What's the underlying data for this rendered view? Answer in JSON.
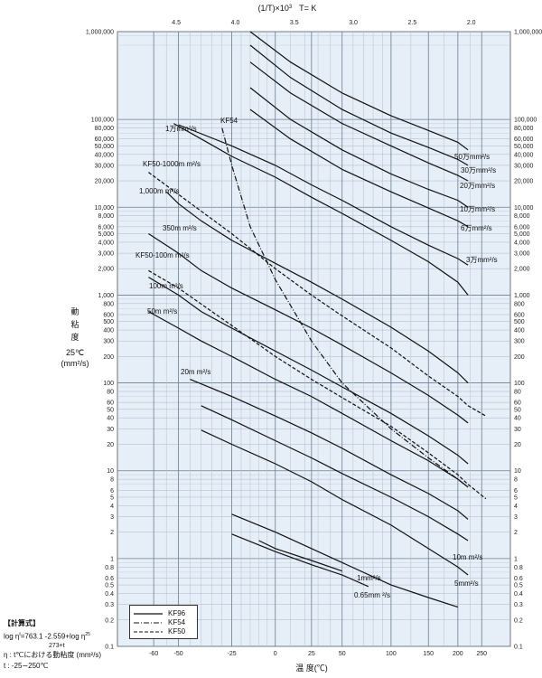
{
  "chart_data": {
    "type": "line",
    "top_axis_label": "(1/T)×10",
    "top_axis_sup": "3",
    "top_axis_unit": "T= K",
    "top_ticks": [
      "4.5",
      "4.0",
      "3.5",
      "3.0",
      "2.5",
      "2.0"
    ],
    "x_ticks": [
      "-60",
      "-50",
      "-25",
      "0",
      "25",
      "50",
      "100",
      "150",
      "200",
      "250"
    ],
    "xlabel": "温 度(℃)",
    "y_ticks": [
      {
        "v": 1000000,
        "t": "1,000,000"
      },
      {
        "v": 100000,
        "t": "100,000"
      },
      {
        "v": 80000,
        "t": "80,000"
      },
      {
        "v": 60000,
        "t": "60,000"
      },
      {
        "v": 50000,
        "t": "50,000"
      },
      {
        "v": 40000,
        "t": "40,000"
      },
      {
        "v": 30000,
        "t": "30,000"
      },
      {
        "v": 20000,
        "t": "20,000"
      },
      {
        "v": 10000,
        "t": "10,000"
      },
      {
        "v": 8000,
        "t": "8,000"
      },
      {
        "v": 6000,
        "t": "6,000"
      },
      {
        "v": 5000,
        "t": "5,000"
      },
      {
        "v": 4000,
        "t": "4,000"
      },
      {
        "v": 3000,
        "t": "3,000"
      },
      {
        "v": 2000,
        "t": "2,000"
      },
      {
        "v": 1000,
        "t": "1,000"
      },
      {
        "v": 800,
        "t": "800"
      },
      {
        "v": 600,
        "t": "600"
      },
      {
        "v": 500,
        "t": "500"
      },
      {
        "v": 400,
        "t": "400"
      },
      {
        "v": 300,
        "t": "300"
      },
      {
        "v": 200,
        "t": "200"
      },
      {
        "v": 100,
        "t": "100"
      },
      {
        "v": 80,
        "t": "80"
      },
      {
        "v": 60,
        "t": "60"
      },
      {
        "v": 50,
        "t": "50"
      },
      {
        "v": 40,
        "t": "40"
      },
      {
        "v": 30,
        "t": "30"
      },
      {
        "v": 20,
        "t": "20"
      },
      {
        "v": 10,
        "t": "10"
      },
      {
        "v": 8,
        "t": "8"
      },
      {
        "v": 6,
        "t": "6"
      },
      {
        "v": 5,
        "t": "5"
      },
      {
        "v": 4,
        "t": "4"
      },
      {
        "v": 3,
        "t": "3"
      },
      {
        "v": 2,
        "t": "2"
      },
      {
        "v": 1,
        "t": "1"
      },
      {
        "v": 0.8,
        "t": "0.8"
      },
      {
        "v": 0.6,
        "t": "0.6"
      },
      {
        "v": 0.5,
        "t": "0.5"
      },
      {
        "v": 0.4,
        "t": "0.4"
      },
      {
        "v": 0.3,
        "t": "0.3"
      },
      {
        "v": 0.2,
        "t": "0.2"
      },
      {
        "v": 0.1,
        "t": "0.1"
      }
    ],
    "ylabel_lines": [
      "動",
      "粘",
      "度",
      "25℃",
      "(mm²/s)"
    ],
    "ylim": [
      0.1,
      1000000
    ],
    "xlim": [
      -70,
      265
    ],
    "series": [
      {
        "name": "50万mm²/s",
        "style": "solid",
        "points": [
          [
            -15,
            1000000
          ],
          [
            10,
            450000
          ],
          [
            50,
            200000
          ],
          [
            100,
            110000
          ],
          [
            150,
            75000
          ],
          [
            200,
            55000
          ],
          [
            220,
            45000
          ]
        ]
      },
      {
        "name": "30万mm²/s",
        "style": "solid",
        "points": [
          [
            -15,
            700000
          ],
          [
            10,
            300000
          ],
          [
            50,
            130000
          ],
          [
            100,
            70000
          ],
          [
            150,
            48000
          ],
          [
            200,
            35000
          ],
          [
            220,
            30000
          ]
        ]
      },
      {
        "name": "20万mm²/s",
        "style": "solid",
        "points": [
          [
            -15,
            450000
          ],
          [
            10,
            200000
          ],
          [
            50,
            90000
          ],
          [
            100,
            50000
          ],
          [
            150,
            32000
          ],
          [
            200,
            23000
          ],
          [
            220,
            20000
          ]
        ]
      },
      {
        "name": "10万mm²/s",
        "style": "solid",
        "points": [
          [
            -15,
            230000
          ],
          [
            10,
            100000
          ],
          [
            50,
            45000
          ],
          [
            100,
            24000
          ],
          [
            150,
            16000
          ],
          [
            200,
            12000
          ],
          [
            220,
            10000
          ]
        ]
      },
      {
        "name": "6万mm²/s",
        "style": "solid",
        "points": [
          [
            -15,
            130000
          ],
          [
            10,
            60000
          ],
          [
            50,
            27000
          ],
          [
            100,
            15000
          ],
          [
            150,
            9800
          ],
          [
            200,
            7000
          ],
          [
            220,
            6000
          ]
        ]
      },
      {
        "name": "3万mm²/s",
        "style": "solid",
        "points": [
          [
            -50,
            87000
          ],
          [
            -25,
            50000
          ],
          [
            0,
            30000
          ],
          [
            25,
            18000
          ],
          [
            50,
            12000
          ],
          [
            100,
            6000
          ],
          [
            150,
            3700
          ],
          [
            200,
            2600
          ],
          [
            220,
            2200
          ]
        ]
      },
      {
        "name": "1万mm²/s",
        "style": "solid",
        "points": [
          [
            -52,
            90000
          ],
          [
            -40,
            60000
          ],
          [
            -25,
            38000
          ],
          [
            0,
            22000
          ],
          [
            25,
            13000
          ],
          [
            50,
            8500
          ],
          [
            100,
            4200
          ],
          [
            150,
            2400
          ],
          [
            200,
            1400
          ],
          [
            220,
            1000
          ]
        ]
      },
      {
        "name": "1,000mm²/s",
        "style": "solid",
        "points": [
          [
            -55,
            15000
          ],
          [
            -50,
            11000
          ],
          [
            -40,
            7000
          ],
          [
            -25,
            4200
          ],
          [
            0,
            2300
          ],
          [
            25,
            1400
          ],
          [
            50,
            900
          ],
          [
            100,
            430
          ],
          [
            150,
            230
          ],
          [
            200,
            130
          ],
          [
            220,
            100
          ]
        ]
      },
      {
        "name": "350mm²/s",
        "style": "solid",
        "points": [
          [
            -62,
            5000
          ],
          [
            -50,
            3000
          ],
          [
            -40,
            1900
          ],
          [
            -25,
            1200
          ],
          [
            0,
            680
          ],
          [
            25,
            420
          ],
          [
            50,
            270
          ],
          [
            100,
            130
          ],
          [
            150,
            72
          ],
          [
            200,
            43
          ],
          [
            220,
            35
          ]
        ]
      },
      {
        "name": "100mm²/s",
        "style": "solid",
        "points": [
          [
            -62,
            1600
          ],
          [
            -50,
            1000
          ],
          [
            -40,
            650
          ],
          [
            -25,
            420
          ],
          [
            0,
            230
          ],
          [
            25,
            140
          ],
          [
            50,
            90
          ],
          [
            100,
            45
          ],
          [
            150,
            25
          ],
          [
            200,
            15
          ],
          [
            220,
            12
          ]
        ]
      },
      {
        "name": "50mm²/s",
        "style": "solid",
        "points": [
          [
            -62,
            650
          ],
          [
            -50,
            420
          ],
          [
            -40,
            300
          ],
          [
            -25,
            200
          ],
          [
            0,
            110
          ],
          [
            25,
            70
          ],
          [
            50,
            45
          ],
          [
            100,
            22
          ],
          [
            150,
            13
          ],
          [
            200,
            8
          ],
          [
            220,
            6.5
          ]
        ]
      },
      {
        "name": "20m m²/s",
        "style": "solid",
        "points": [
          [
            -45,
            110
          ],
          [
            -25,
            70
          ],
          [
            0,
            42
          ],
          [
            25,
            27
          ],
          [
            50,
            18
          ],
          [
            100,
            9
          ],
          [
            150,
            5.5
          ],
          [
            200,
            3.5
          ],
          [
            220,
            2.8
          ]
        ]
      },
      {
        "name": "",
        "style": "solid",
        "points": [
          [
            -40,
            55
          ],
          [
            -25,
            38
          ],
          [
            0,
            22
          ],
          [
            25,
            14
          ],
          [
            50,
            9.3
          ],
          [
            100,
            5
          ],
          [
            150,
            3
          ],
          [
            200,
            1.9
          ],
          [
            220,
            1.6
          ]
        ]
      },
      {
        "name": "10mm²/s",
        "style": "solid",
        "points": [
          [
            -40,
            29
          ],
          [
            -25,
            20
          ],
          [
            0,
            12
          ],
          [
            25,
            7.5
          ],
          [
            50,
            4.7
          ],
          [
            100,
            2.4
          ],
          [
            150,
            1.3
          ],
          [
            200,
            0.8
          ],
          [
            220,
            0.65
          ]
        ]
      },
      {
        "name": "5mm²/s",
        "style": "solid",
        "points": [
          [
            -25,
            3.2
          ],
          [
            0,
            2
          ],
          [
            25,
            1.3
          ],
          [
            50,
            0.9
          ],
          [
            100,
            0.5
          ],
          [
            150,
            0.36
          ],
          [
            200,
            0.28
          ]
        ]
      },
      {
        "name": "1mm²/s",
        "style": "solid",
        "points": [
          [
            -25,
            1.9
          ],
          [
            0,
            1.2
          ],
          [
            25,
            0.85
          ],
          [
            50,
            0.65
          ],
          [
            75,
            0.48
          ]
        ]
      },
      {
        "name": "0.65mm²/s",
        "style": "solid",
        "points": [
          [
            -10,
            1.6
          ],
          [
            0,
            1.3
          ],
          [
            25,
            0.95
          ],
          [
            50,
            0.72
          ]
        ]
      },
      {
        "name": "KF54",
        "style": "dashdot",
        "points": [
          [
            -30,
            80000
          ],
          [
            -25,
            30000
          ],
          [
            -15,
            6000
          ],
          [
            0,
            1500
          ],
          [
            25,
            300
          ],
          [
            50,
            100
          ],
          [
            100,
            30
          ],
          [
            150,
            14
          ],
          [
            200,
            8
          ],
          [
            220,
            6.5
          ]
        ]
      },
      {
        "name": "KF50-1000m m²/s",
        "style": "dashed",
        "points": [
          [
            -62,
            25000
          ],
          [
            -50,
            14000
          ],
          [
            -25,
            5000
          ],
          [
            0,
            2000
          ],
          [
            25,
            1000
          ],
          [
            50,
            580
          ],
          [
            100,
            250
          ],
          [
            150,
            120
          ],
          [
            200,
            70
          ],
          [
            220,
            55
          ],
          [
            260,
            42
          ]
        ]
      },
      {
        "name": "KF50-100m m²/s",
        "style": "dashed",
        "points": [
          [
            -62,
            1900
          ],
          [
            -50,
            1200
          ],
          [
            -25,
            450
          ],
          [
            0,
            200
          ],
          [
            25,
            110
          ],
          [
            50,
            68
          ],
          [
            100,
            32
          ],
          [
            150,
            16
          ],
          [
            200,
            9
          ],
          [
            220,
            7
          ],
          [
            260,
            4.8
          ]
        ]
      }
    ],
    "label_texts": {
      "s50": "50万mm²/s",
      "s30": "30万mm²/s",
      "s20": "20万mm²/s",
      "s10": "10万mm²/s",
      "s6": "6万mm²/s",
      "s3": "3万mm²/s",
      "s1m": "1万mm²/s",
      "s1000": "1,000m m²/s",
      "s350": "350m m²/s",
      "s100": "100m m²/s",
      "s50cs": "50m m²/s",
      "s20cs": "20m m²/s",
      "s10cs": "10m m²/s",
      "s5cs": "5mm²/s",
      "s1cs": "1mm²/s",
      "s065": "0.65mm ²/s",
      "kf54": "KF54",
      "kf50a": "KF50-1000m  m²/s",
      "kf50b": "KF50-100m  m²/s"
    }
  },
  "legend": [
    {
      "name": "KF96",
      "style": "solid"
    },
    {
      "name": "KF54",
      "style": "dashdot"
    },
    {
      "name": "KF50",
      "style": "dashed"
    }
  ],
  "formula": {
    "title": "【計算式】",
    "line1": "log η",
    "line1b": "=763.1   -2.559+log η",
    "line1c": "25",
    "line2": "273+t",
    "line3": "η : t℃における動粘度 (mm²/s)",
    "line4": "t : -25∼250℃"
  }
}
